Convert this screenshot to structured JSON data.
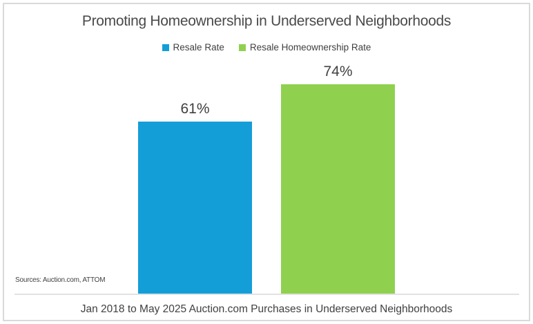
{
  "title": "Promoting Homeownership in Underserved Neighborhoods",
  "caption": "Jan 2018 to May 2025 Auction.com Purchases in Underserved Neighborhoods",
  "source_note": "Sources: Auction.com, ATTOM",
  "colors": {
    "resale_rate_blue": "#149ed8",
    "resale_homeownership_green": "#8fd14f",
    "text": "#404040",
    "axis_line": "#e2e2e2",
    "frame_border": "#d9d9d9"
  },
  "chart_data": {
    "type": "bar",
    "title": "Promoting Homeownership in Underserved Neighborhoods",
    "categories": [
      "Resale Rate",
      "Resale Homeownership Rate"
    ],
    "values": [
      61,
      74
    ],
    "data_labels": [
      "61%",
      "74%"
    ],
    "series": [
      {
        "name": "Resale Rate",
        "value": 61,
        "color": "#149ed8"
      },
      {
        "name": "Resale Homeownership Rate",
        "value": 74,
        "color": "#8fd14f"
      }
    ],
    "xlabel": "",
    "ylabel": "",
    "ylim": [
      0,
      80
    ],
    "grid": false,
    "legend_position": "top",
    "value_axis_visible": false
  }
}
